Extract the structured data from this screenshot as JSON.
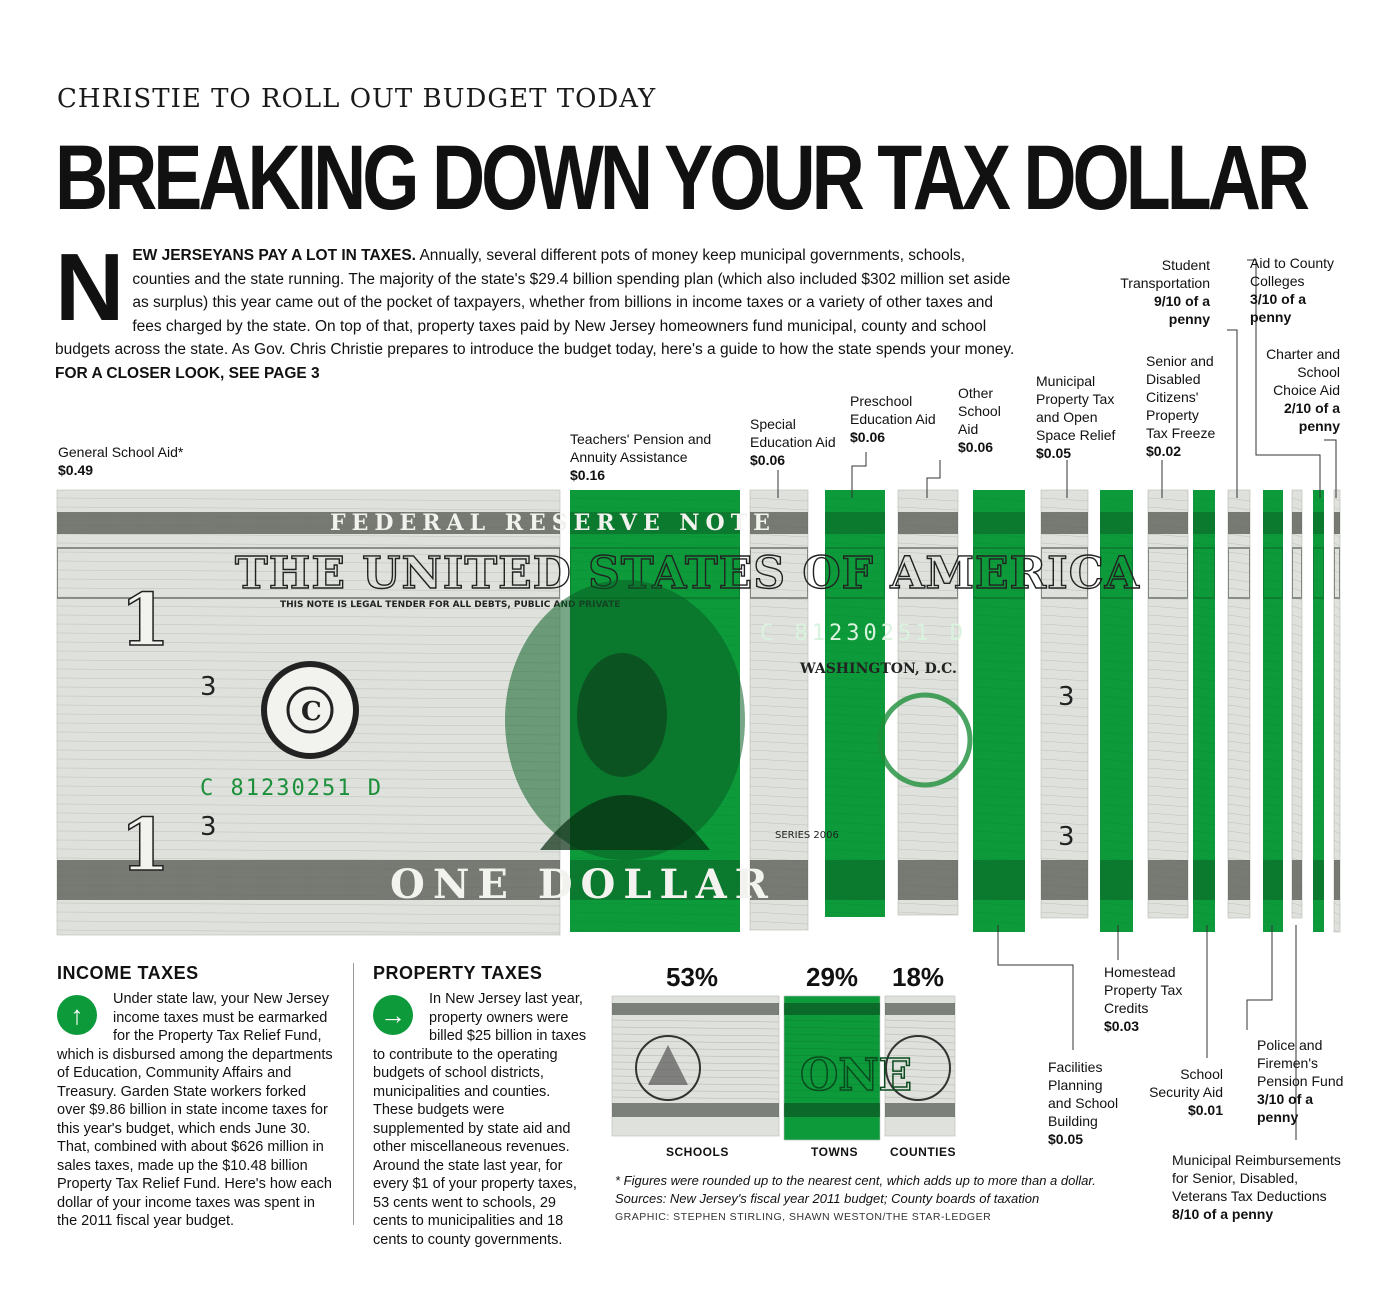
{
  "header": {
    "kicker": "CHRISTIE TO ROLL OUT BUDGET TODAY",
    "headline": "BREAKING DOWN YOUR TAX DOLLAR"
  },
  "intro": {
    "dropcap": "N",
    "lead": "EW JERSEYANS PAY A LOT IN TAXES.",
    "text": " Annually, several different pots of money keep municipal governments, schools, counties and the state running. The majority of the state's $29.4 billion spending plan (which also included $302 million set aside as surplus) this year came out of the pocket of taxpayers, whether from billions in income taxes or a variety of other taxes and fees charged by the state. On top of that, property taxes paid by New Jersey homeowners fund municipal, county and school budgets across the state. As Gov. Chris Christie prepares to introduce the budget today, here's a guide to how the state spends your money.",
    "see_more": " FOR A CLOSER LOOK, SEE PAGE 3"
  },
  "bill": {
    "serial": "C 81230251 D",
    "top_text": "FEDERAL RESERVE NOTE",
    "states_text": "THE UNITED STATES OF AMERICA",
    "legal_tender": "THIS NOTE IS LEGAL TENDER FOR ALL DEBTS, PUBLIC AND PRIVATE",
    "bottom_text": "ONE DOLLAR",
    "city": "WASHINGTON, D.C.",
    "series": "SERIES 2006",
    "letter": "C",
    "digit": "1",
    "num3": "3"
  },
  "chart_data": {
    "type": "bar",
    "title": "BREAKING DOWN YOUR TAX DOLLAR",
    "unit": "dollars",
    "categories": [
      "General School Aid*",
      "Teachers' Pension and Annuity Assistance",
      "Special Education Aid",
      "Preschool Education Aid",
      "Other School Aid",
      "Homestead Property Tax Credits",
      "Municipal Property Tax and Open Space Relief",
      "Facilities Planning and School Building",
      "Senior and Disabled Citizens' Property Tax Freeze",
      "School Security Aid",
      "Student Transportation",
      "Municipal Reimbursements for Senior, Disabled, Veterans Tax Deductions",
      "Aid to County Colleges",
      "Police and Firemen's Pension Fund",
      "Charter and School Choice Aid"
    ],
    "value_labels": [
      "$0.49",
      "$0.16",
      "$0.06",
      "$0.06",
      "$0.06",
      "$0.03",
      "$0.05",
      "$0.05",
      "$0.02",
      "$0.01",
      "9/10 of a penny",
      "8/10 of a penny",
      "3/10 of a penny",
      "3/10 of a penny",
      "2/10 of a penny"
    ],
    "values": [
      0.49,
      0.16,
      0.06,
      0.06,
      0.06,
      0.03,
      0.05,
      0.05,
      0.02,
      0.01,
      0.009,
      0.008,
      0.003,
      0.003,
      0.002
    ],
    "colors": [
      "white",
      "green",
      "white",
      "green",
      "white",
      "green",
      "white",
      "green",
      "white",
      "green",
      "white",
      "green",
      "white",
      "green",
      "white"
    ]
  },
  "strip_labels": {
    "general": {
      "name": "General School Aid*",
      "value": "$0.49"
    },
    "teachers": {
      "name": "Teachers' Pension and Annuity Assistance",
      "value": "$0.16"
    },
    "special": {
      "name": "Special Education Aid",
      "value": "$0.06"
    },
    "preschool": {
      "name": "Preschool Education Aid",
      "value": "$0.06"
    },
    "other": {
      "name": "Other School Aid",
      "value": "$0.06"
    },
    "municipal": {
      "name": "Municipal Property Tax and Open Space Relief",
      "value": "$0.05"
    },
    "senior": {
      "name": "Senior and Disabled Citizens' Property Tax Freeze",
      "value": "$0.02"
    },
    "student": {
      "name": "Student Transportation",
      "value": "9/10 of a penny"
    },
    "county": {
      "name": "Aid to County Colleges",
      "value": "3/10 of a penny"
    },
    "charter": {
      "name": "Charter and School Choice Aid",
      "value": "2/10 of a penny"
    },
    "homestead": {
      "name": "Homestead Property Tax Credits",
      "value": "$0.03"
    },
    "facilities": {
      "name": "Facilities Planning and School Building",
      "value": "$0.05"
    },
    "security": {
      "name": "School Security Aid",
      "value": "$0.01"
    },
    "police": {
      "name": "Police and Firemen's Pension Fund",
      "value": "3/10 of a penny"
    },
    "reimburse": {
      "name": "Municipal Reimbursements for Senior, Disabled, Veterans Tax Deductions",
      "value": "8/10 of a penny"
    }
  },
  "income": {
    "heading": "INCOME TAXES",
    "icon": "arrow-up-icon",
    "text": "Under state law, your New Jersey income taxes must be earmarked for the Property Tax Relief Fund, which is disbursed among the departments of Education, Community Affairs and Treasury. Garden State workers forked over $9.86 billion in state income taxes for this year's budget, which ends June 30. That, combined with about $626 million in sales taxes, made up the $10.48 billion Property Tax Relief Fund. Here's how each dollar of your income taxes was spent in the 2011 fiscal year budget."
  },
  "property": {
    "heading": "PROPERTY TAXES",
    "icon": "arrow-right-icon",
    "text": "In New Jersey last year, property owners were billed $25 billion in taxes to contribute to the operating budgets of school districts, municipalities and counties. These budgets were supplemented by state aid and other miscellaneous revenues. Around the state last year, for every $1 of your property taxes, 53 cents went to schools, 29 cents to municipalities and 18 cents to county governments."
  },
  "property_split": {
    "items": [
      {
        "label": "SCHOOLS",
        "pct": "53%",
        "value": 53
      },
      {
        "label": "TOWNS",
        "pct": "29%",
        "value": 29
      },
      {
        "label": "COUNTIES",
        "pct": "18%",
        "value": 18
      }
    ]
  },
  "footnote": "* Figures were rounded up to the nearest cent, which adds up to more than a dollar. Sources: New Jersey's fiscal year 2011 budget; County boards of taxation",
  "credit": "GRAPHIC: STEPHEN STIRLING, SHAWN WESTON/THE STAR-LEDGER",
  "colors": {
    "green": "#0d9a3a",
    "bill": "#dfe2dc",
    "ink": "#3b4038"
  }
}
